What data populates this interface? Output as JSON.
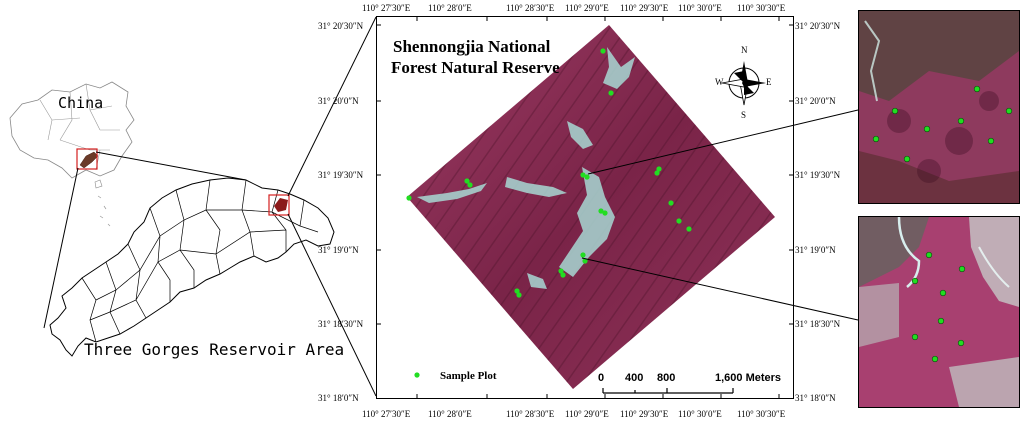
{
  "overview": {
    "china_label": "China",
    "region_label": "Three Gorges Reservoir Area"
  },
  "map": {
    "title_line1": "Shennongjia National",
    "title_line2": "Forest Natural Reserve",
    "north_arrow": {
      "n": "N",
      "s": "S",
      "e": "E",
      "w": "W"
    },
    "legend_label": "Sample Plot",
    "scale_labels": [
      "0",
      "400",
      "800",
      "1,600 Meters"
    ],
    "top_lon_labels": [
      "110° 27′30″E",
      "110° 28′0″E",
      "110° 28′30″E",
      "110° 29′0″E",
      "110° 29′30″E",
      "110° 30′0″E",
      "110° 30′30″E"
    ],
    "bottom_lon_labels": [
      "110° 27′30″E",
      "110° 28′0″E",
      "110° 28′30″E",
      "110° 29′0″E",
      "110° 29′30″E",
      "110° 30′0″E",
      "110° 30′30″E"
    ],
    "left_lat_labels": [
      "31° 20′30″N",
      "31° 20′0″N",
      "31° 19′30″N",
      "31° 19′0″N",
      "31° 18′30″N",
      "31° 18′0″N"
    ],
    "right_lat_labels": [
      "31° 20′30″N",
      "31° 20′0″N",
      "31° 19′30″N",
      "31° 19′0″N",
      "31° 18′30″N",
      "31° 18′0″N"
    ]
  },
  "colors": {
    "forest": "#8a2c52",
    "sample_plot": "#22dd22",
    "locator_box": "#d42020"
  }
}
